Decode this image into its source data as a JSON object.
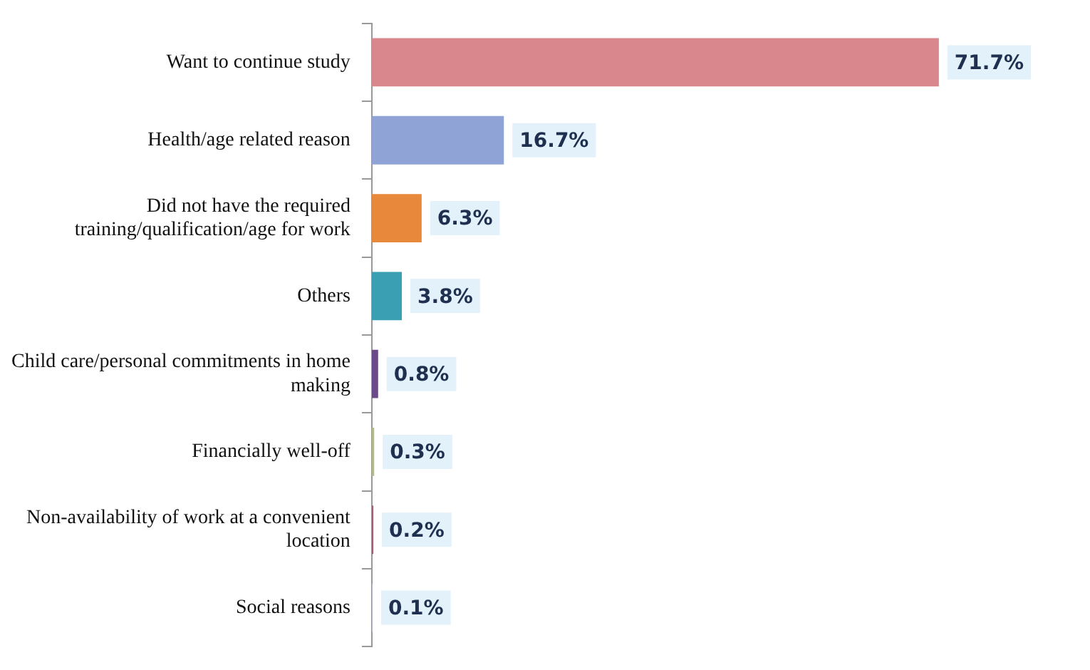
{
  "chart_data": {
    "type": "bar",
    "orientation": "horizontal",
    "categories": [
      "Want to continue study",
      "Health/age related reason",
      "Did not have the required training/qualification/age for work",
      "Others",
      "Child care/personal commitments in home making",
      "Financially well-off",
      "Non-availability of work at a convenient location",
      "Social reasons"
    ],
    "values": [
      71.7,
      16.7,
      6.3,
      3.8,
      0.8,
      0.3,
      0.2,
      0.1
    ],
    "colors": [
      "#d9868c",
      "#8fa3d6",
      "#e8883a",
      "#3a9fb2",
      "#6b4a8a",
      "#b3b98f",
      "#a05f72",
      "#b8b8c8"
    ],
    "value_labels": [
      "71.7%",
      "16.7%",
      "6.3%",
      "3.8%",
      "0.8%",
      "0.3%",
      "0.2%",
      "0.1%"
    ],
    "legend": false
  }
}
